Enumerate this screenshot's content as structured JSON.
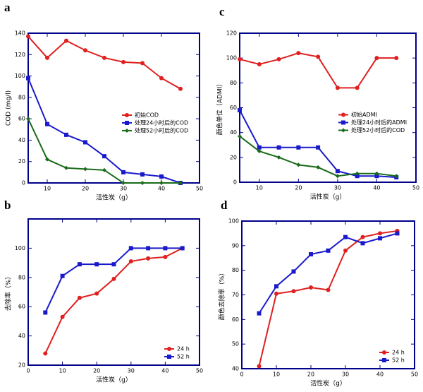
{
  "chart_data": [
    {
      "type": "line",
      "panel_label": "a",
      "x_label": "活性炭（g）",
      "y_label": "COD (mg/l)",
      "x": [
        5,
        10,
        15,
        20,
        25,
        30,
        35,
        40,
        45
      ],
      "xlim": [
        5,
        50
      ],
      "xticks": [
        10,
        20,
        30,
        40,
        50
      ],
      "ylim": [
        0,
        140
      ],
      "yticks": [
        0,
        20,
        40,
        60,
        80,
        100,
        120,
        140
      ],
      "legend": "center right",
      "series": [
        {
          "name": "初始COD",
          "color": "#e02020",
          "marker": "circle",
          "values": [
            137,
            117,
            133,
            124,
            117,
            113,
            112,
            98,
            88
          ]
        },
        {
          "name": "处理24小时后的COD",
          "color": "#1a1acc",
          "marker": "square",
          "values": [
            98,
            55,
            45,
            38,
            25,
            10,
            8,
            6,
            0
          ]
        },
        {
          "name": "处理52小时后的COD",
          "color": "#1a6b1a",
          "marker": "diamond",
          "values": [
            60,
            22,
            14,
            13,
            12,
            0,
            0,
            0,
            0
          ]
        }
      ]
    },
    {
      "type": "line",
      "panel_label": "b",
      "x_label": "活性炭（g）",
      "y_label": "去除率（%）",
      "x": [
        5,
        10,
        15,
        20,
        25,
        30,
        35,
        40,
        45
      ],
      "xlim": [
        0,
        50
      ],
      "xticks": [
        0,
        10,
        20,
        30,
        40,
        50
      ],
      "ylim": [
        20,
        120
      ],
      "yticks": [
        20,
        40,
        60,
        80,
        100
      ],
      "legend": "lower right",
      "series": [
        {
          "name": "24 h",
          "color": "#e02020",
          "marker": "circle",
          "values": [
            28,
            53,
            66,
            69,
            79,
            91,
            93,
            94,
            100
          ]
        },
        {
          "name": "52 h",
          "color": "#1a1acc",
          "marker": "square",
          "values": [
            56,
            81,
            89,
            89,
            89,
            100,
            100,
            100,
            100
          ]
        }
      ]
    },
    {
      "type": "line",
      "panel_label": "c",
      "x_label": "活性炭（g）",
      "y_label": "颜色单位（ADMI）",
      "x": [
        5,
        10,
        15,
        20,
        25,
        30,
        35,
        40,
        45
      ],
      "xlim": [
        5,
        50
      ],
      "xticks": [
        10,
        20,
        30,
        40,
        50
      ],
      "ylim": [
        0,
        120
      ],
      "yticks": [
        0,
        20,
        40,
        60,
        80,
        100,
        120
      ],
      "legend": "center right",
      "series": [
        {
          "name": "初始ADMI",
          "color": "#e02020",
          "marker": "circle",
          "values": [
            99,
            95,
            99,
            104,
            101,
            76,
            76,
            100,
            100
          ]
        },
        {
          "name": "处理24小时后的ADMI",
          "color": "#1a1acc",
          "marker": "square",
          "values": [
            58,
            28,
            28,
            28,
            28,
            9,
            5,
            5,
            4
          ]
        },
        {
          "name": "处理52小时后的COD",
          "color": "#1a6b1a",
          "marker": "diamond",
          "values": [
            37,
            25,
            20,
            14,
            12,
            5,
            7,
            7,
            5
          ]
        }
      ]
    },
    {
      "type": "line",
      "panel_label": "d",
      "x_label": "活性炭（g）",
      "y_label": "颜色去除率（%）",
      "x": [
        5,
        10,
        15,
        20,
        25,
        30,
        35,
        40,
        45
      ],
      "xlim": [
        0,
        50
      ],
      "xticks": [
        0,
        10,
        20,
        30,
        40,
        50
      ],
      "ylim": [
        40,
        100
      ],
      "yticks": [
        40,
        50,
        60,
        70,
        80,
        90,
        100
      ],
      "legend": "lower right",
      "series": [
        {
          "name": "24 h",
          "color": "#e02020",
          "marker": "circle",
          "values": [
            41,
            70.5,
            71.5,
            73,
            72,
            88,
            93.5,
            95,
            96
          ]
        },
        {
          "name": "52 h",
          "color": "#1a1acc",
          "marker": "square",
          "values": [
            62.5,
            73.5,
            79.5,
            86.5,
            88,
            93.5,
            91,
            93,
            95
          ]
        }
      ]
    }
  ]
}
